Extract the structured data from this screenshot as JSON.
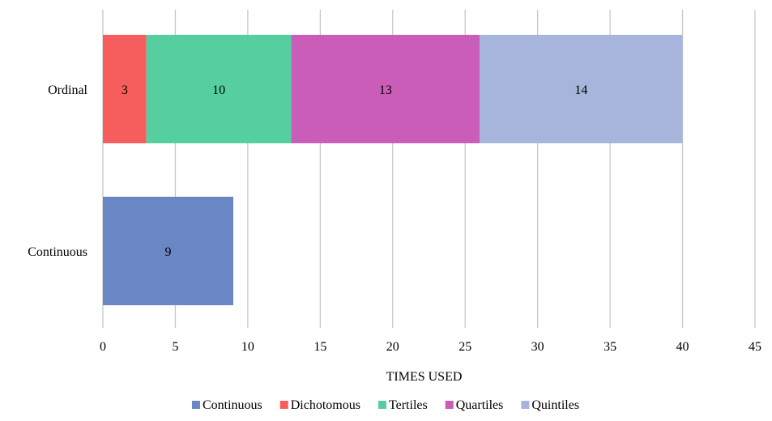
{
  "chart_data": {
    "type": "bar",
    "orientation": "horizontal",
    "stacked": true,
    "categories": [
      "Ordinal",
      "Continuous"
    ],
    "series": [
      {
        "name": "Continuous",
        "color": "#6B86C4",
        "values": [
          0,
          9
        ]
      },
      {
        "name": "Dichotomous",
        "color": "#F65E5E",
        "values": [
          3,
          0
        ]
      },
      {
        "name": "Tertiles",
        "color": "#55CFA0",
        "values": [
          10,
          0
        ]
      },
      {
        "name": "Quartiles",
        "color": "#C95DB7",
        "values": [
          13,
          0
        ]
      },
      {
        "name": "Quintiles",
        "color": "#A7B5DC",
        "values": [
          14,
          0
        ]
      }
    ],
    "title": "",
    "xlabel": "TIMES USED",
    "ylabel": "",
    "xlim": [
      0,
      45
    ],
    "xticks": [
      "0",
      "5",
      "10",
      "15",
      "20",
      "25",
      "30",
      "35",
      "40",
      "45"
    ],
    "grid": "vertical",
    "legend": "bottom",
    "grid_color": "#C8C8C8"
  }
}
